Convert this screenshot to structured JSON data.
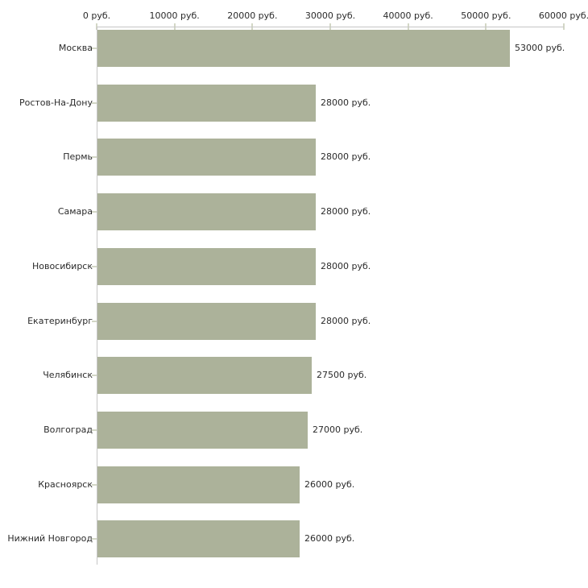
{
  "chart_data": {
    "type": "bar",
    "orientation": "horizontal",
    "title": "",
    "xlabel": "",
    "ylabel": "",
    "unit": "руб.",
    "categories": [
      "Москва",
      "Ростов-На-Дону",
      "Пермь",
      "Самара",
      "Новосибирск",
      "Екатеринбург",
      "Челябинск",
      "Волгоград",
      "Красноярск",
      "Нижний Новгород"
    ],
    "values": [
      53000,
      28000,
      28000,
      28000,
      28000,
      28000,
      27500,
      27000,
      26000,
      26000
    ],
    "value_labels": [
      "53000 руб.",
      "28000 руб.",
      "28000 руб.",
      "28000 руб.",
      "28000 руб.",
      "28000 руб.",
      "27500 руб.",
      "27000 руб.",
      "26000 руб.",
      "26000 руб."
    ],
    "x_axis": {
      "position": "top",
      "min": 0,
      "max": 60000,
      "tick_interval": 10000,
      "tick_labels": [
        "0 руб.",
        "10000 руб.",
        "20000 руб.",
        "30000 руб.",
        "40000 руб.",
        "50000 руб.",
        "60000 руб."
      ]
    },
    "grid": false,
    "legend": false,
    "colors": {
      "bar": "#acb29a",
      "axis_line": "#c6c6c6",
      "tick_mark": "#d3d7c6",
      "text": "#2b2b2b",
      "background": "#ffffff"
    }
  }
}
